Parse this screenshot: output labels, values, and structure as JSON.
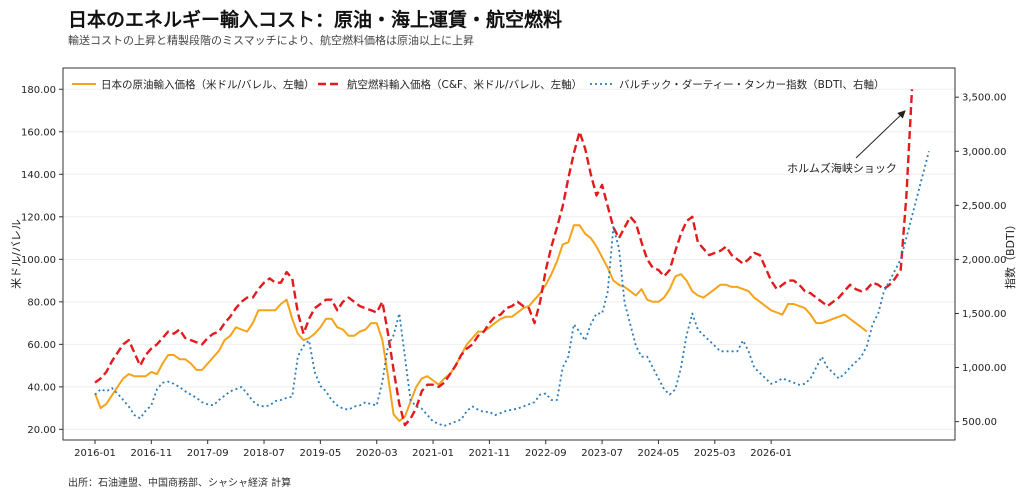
{
  "title": "日本のエネルギー輸入コスト：原油・海上運賃・航空燃料",
  "subtitle": "輸送コストの上昇と精製段階のミスマッチにより、航空燃料価格は原油以上に上昇",
  "source": "出所：石油連盟、中国商務部、シャシャ経済 計算",
  "chart_data": {
    "type": "line",
    "ylabel_left": "米ドル/バレル",
    "ylabel_right": "指数（BDTI）",
    "ylim_left": [
      15,
      190
    ],
    "ylim_right": [
      330,
      3770
    ],
    "yticks_left": [
      "20.00",
      "40.00",
      "60.00",
      "80.00",
      "100.00",
      "120.00",
      "140.00",
      "160.00",
      "180.00"
    ],
    "yticks_right": [
      "500.00",
      "1,000.00",
      "1,500.00",
      "2,000.00",
      "2,500.00",
      "3,000.00",
      "3,500.00"
    ],
    "xticks": [
      "2016-01",
      "2016-11",
      "2017-09",
      "2018-07",
      "2019-05",
      "2020-03",
      "2021-01",
      "2021-11",
      "2022-09",
      "2023-07",
      "2024-05",
      "2025-03",
      "2026-01"
    ],
    "x_start_month": "2016-01",
    "annotation": "ホルムズ海峡ショック",
    "series": [
      {
        "name": "日本の原油輸入価格（米ドル/バレル、左軸）",
        "axis": "left",
        "color": "#f5a31a",
        "style": "solid",
        "values": [
          37,
          30,
          32,
          36,
          40,
          44,
          46,
          45,
          45,
          45,
          47,
          46,
          51,
          55,
          55,
          53,
          53,
          51,
          48,
          48,
          51,
          54,
          57,
          62,
          64,
          68,
          67,
          66,
          70,
          76,
          76,
          76,
          76,
          79,
          81,
          72,
          65,
          62,
          63,
          65,
          68,
          72,
          72,
          68,
          67,
          64,
          64,
          66,
          67,
          70,
          70,
          62,
          45,
          27,
          24,
          26,
          33,
          40,
          44,
          45,
          43,
          41,
          44,
          46,
          50,
          55,
          60,
          63,
          66,
          66,
          68,
          70,
          72,
          73,
          73,
          75,
          77,
          78,
          81,
          84,
          88,
          93,
          99,
          107,
          108,
          116,
          116,
          112,
          110,
          106,
          101,
          96,
          90,
          88,
          87,
          85,
          83,
          86,
          81,
          80,
          80,
          82,
          86,
          92,
          93,
          90,
          85,
          83,
          82,
          84,
          86,
          88,
          88,
          87,
          87,
          86,
          85,
          82,
          80,
          78,
          76,
          75,
          74,
          79,
          79,
          78,
          77,
          74,
          70,
          70,
          71,
          72,
          73,
          74,
          72,
          70,
          68,
          66,
          null,
          null,
          null
        ]
      },
      {
        "name": "航空燃料輸入価格（C&F、米ドル/バレル、左軸）",
        "axis": "left",
        "color": "#e41a1c",
        "style": "dashed",
        "values": [
          42,
          44,
          47,
          52,
          56,
          60,
          62,
          56,
          50,
          55,
          58,
          60,
          63,
          66,
          65,
          67,
          63,
          62,
          61,
          60,
          63,
          65,
          66,
          70,
          73,
          77,
          80,
          82,
          82,
          86,
          89,
          91,
          89,
          89,
          94,
          91,
          75,
          65,
          72,
          77,
          79,
          81,
          81,
          76,
          80,
          82,
          80,
          78,
          77,
          76,
          75,
          80,
          65,
          48,
          32,
          22,
          25,
          30,
          38,
          41,
          41,
          40,
          42,
          46,
          50,
          55,
          58,
          60,
          64,
          66,
          70,
          73,
          74,
          77,
          78,
          80,
          78,
          77,
          70,
          80,
          95,
          106,
          115,
          125,
          138,
          150,
          160,
          152,
          140,
          130,
          135,
          125,
          115,
          110,
          115,
          120,
          117,
          108,
          100,
          96,
          95,
          92,
          95,
          104,
          112,
          118,
          120,
          108,
          105,
          102,
          103,
          104,
          106,
          102,
          100,
          98,
          100,
          103,
          102,
          96,
          90,
          86,
          88,
          90,
          90,
          88,
          85,
          84,
          82,
          80,
          78,
          80,
          82,
          85,
          88,
          86,
          85,
          86,
          89,
          88,
          86,
          88,
          91,
          95,
          130,
          180
        ]
      },
      {
        "name": "バルチック・ダーティー・タンカー指数（BDTI、右軸）",
        "axis": "right",
        "color": "#2b7bba",
        "style": "dotted",
        "values": [
          750,
          800,
          780,
          810,
          760,
          700,
          640,
          560,
          530,
          600,
          650,
          800,
          860,
          870,
          850,
          820,
          780,
          750,
          720,
          680,
          660,
          650,
          700,
          740,
          780,
          800,
          820,
          760,
          690,
          650,
          640,
          650,
          690,
          700,
          720,
          730,
          1100,
          1200,
          1250,
          960,
          830,
          780,
          700,
          650,
          620,
          610,
          640,
          650,
          680,
          660,
          650,
          870,
          1200,
          1300,
          1500,
          1100,
          700,
          640,
          620,
          560,
          500,
          480,
          460,
          480,
          500,
          520,
          600,
          640,
          610,
          590,
          590,
          560,
          580,
          600,
          610,
          620,
          640,
          660,
          680,
          750,
          760,
          700,
          700,
          1000,
          1100,
          1400,
          1330,
          1250,
          1400,
          1500,
          1500,
          1700,
          2300,
          2100,
          1600,
          1400,
          1200,
          1100,
          1100,
          1000,
          900,
          800,
          750,
          800,
          1000,
          1300,
          1500,
          1350,
          1300,
          1250,
          1200,
          1150,
          1150,
          1150,
          1150,
          1250,
          1150,
          1000,
          950,
          900,
          850,
          870,
          900,
          880,
          860,
          840,
          850,
          900,
          1000,
          1100,
          1000,
          950,
          900,
          940,
          1000,
          1050,
          1100,
          1200,
          1400,
          1500,
          1700,
          1800,
          1900,
          2000,
          2200,
          2400,
          2600,
          2800,
          3000
        ]
      }
    ]
  }
}
